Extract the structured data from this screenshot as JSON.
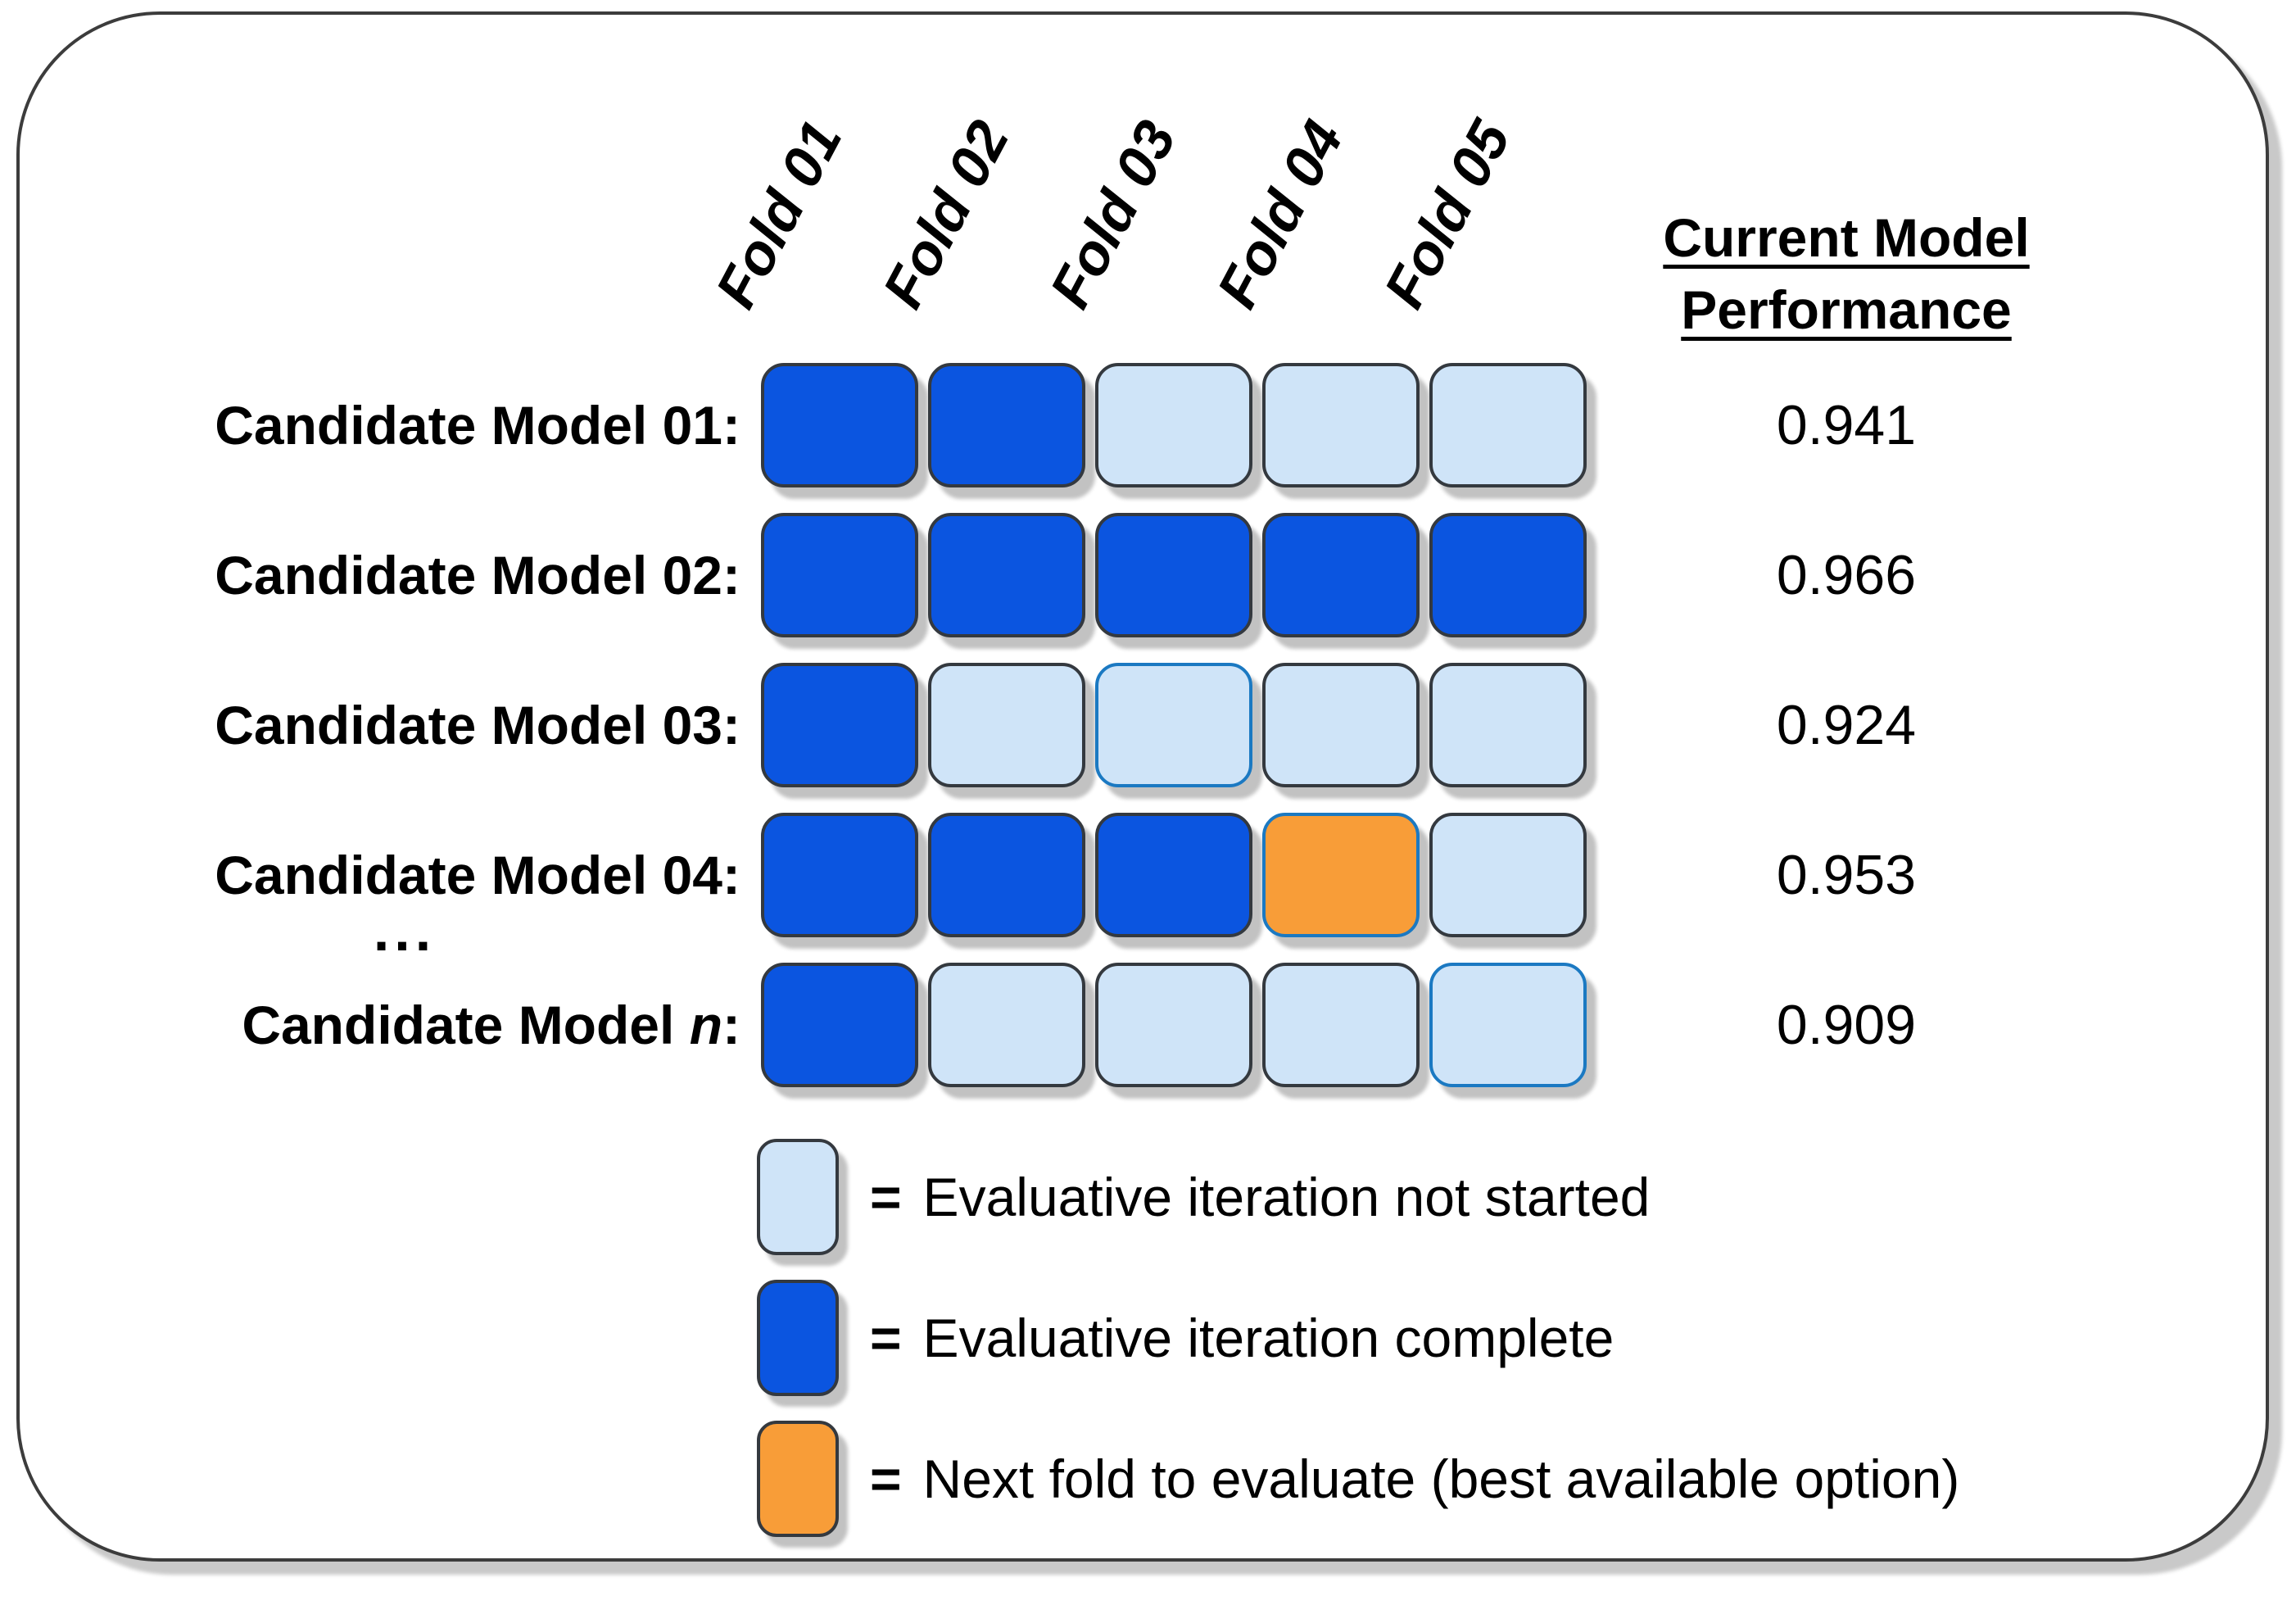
{
  "grid": {
    "fold_headers": [
      "Fold 01",
      "Fold 02",
      "Fold 03",
      "Fold 04",
      "Fold 05"
    ],
    "performance_header": "Current Model Performance",
    "ellipsis": "...",
    "rows": [
      {
        "label": "Candidate Model 01:",
        "cells": [
          "complete",
          "complete",
          "not_started",
          "not_started",
          "not_started"
        ],
        "performance": "0.941"
      },
      {
        "label": "Candidate Model 02:",
        "cells": [
          "complete",
          "complete",
          "complete",
          "complete",
          "complete"
        ],
        "performance": "0.966"
      },
      {
        "label": "Candidate Model 03:",
        "cells": [
          "complete",
          "not_started",
          "not_started",
          "not_started",
          "not_started"
        ],
        "performance": "0.924"
      },
      {
        "label": "Candidate Model 04:",
        "cells": [
          "complete",
          "complete",
          "complete",
          "next",
          "not_started"
        ],
        "performance": "0.953"
      },
      {
        "label_prefix": "Candidate Model ",
        "label_italic": "n",
        "label_suffix": ":",
        "cells": [
          "complete",
          "not_started",
          "not_started",
          "not_started",
          "not_started"
        ],
        "performance": "0.909"
      }
    ]
  },
  "legend": {
    "items": [
      {
        "state": "not_started",
        "symbol": "=",
        "label": "Evaluative iteration not started"
      },
      {
        "state": "complete",
        "symbol": "=",
        "label": "Evaluative iteration complete"
      },
      {
        "state": "next",
        "symbol": "=",
        "label": "Next fold to evaluate (best available option)"
      }
    ]
  },
  "colors": {
    "complete": "#0b55e0",
    "not_started": "#cfe4f8",
    "next": "#f89d38",
    "cell_border": "#34393f",
    "accent_border": "#1b79c2",
    "panel_border": "#3c3c3c"
  }
}
